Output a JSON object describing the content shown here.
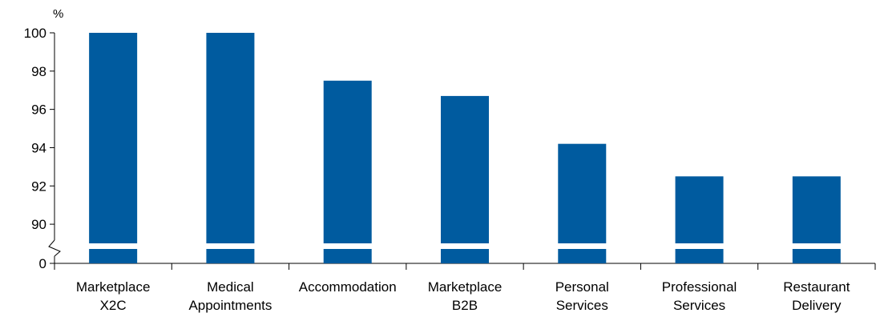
{
  "chart_data": {
    "type": "bar",
    "ylabel": "%",
    "ylim": [
      89,
      100
    ],
    "axis_break": true,
    "bottom_tick_label": "0",
    "yticks": [
      90,
      92,
      94,
      96,
      98,
      100
    ],
    "grid": false,
    "categories": [
      [
        "Marketplace",
        "X2C"
      ],
      [
        "Medical",
        "Appointments"
      ],
      [
        "Accommodation"
      ],
      [
        "Marketplace",
        "B2B"
      ],
      [
        "Personal",
        "Services"
      ],
      [
        "Professional",
        "Services"
      ],
      [
        "Restaurant",
        "Delivery"
      ]
    ],
    "values": [
      100,
      100,
      97.5,
      96.7,
      94.2,
      92.5,
      92.5
    ],
    "bar_color": "#005b9f"
  }
}
